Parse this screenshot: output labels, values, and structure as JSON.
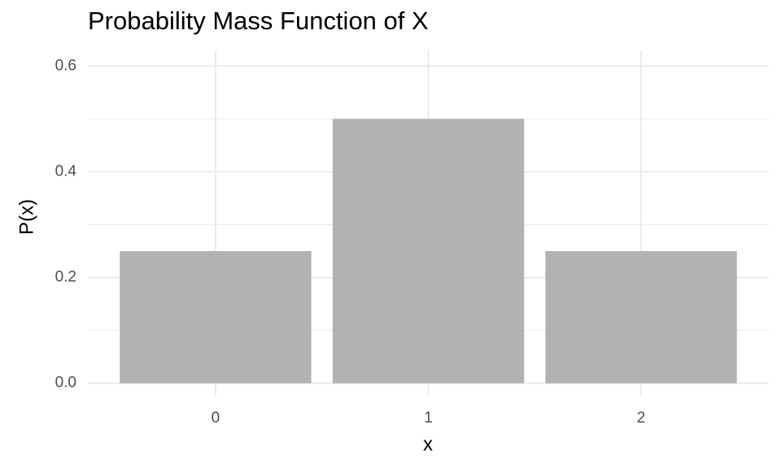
{
  "chart_data": {
    "type": "bar",
    "title": "Probability Mass Function of X",
    "xlabel": "x",
    "ylabel": "P(x)",
    "categories": [
      "0",
      "1",
      "2"
    ],
    "values": [
      0.25,
      0.5,
      0.25
    ],
    "color": "#b2b2b2",
    "ylim": [
      -0.025,
      0.625
    ],
    "yticks": [
      {
        "value": 0,
        "label": "0.0"
      },
      0.2,
      0.4,
      0.6
    ],
    "minor_yticks": [
      0.1,
      0.3,
      0.5
    ],
    "grid": true
  }
}
